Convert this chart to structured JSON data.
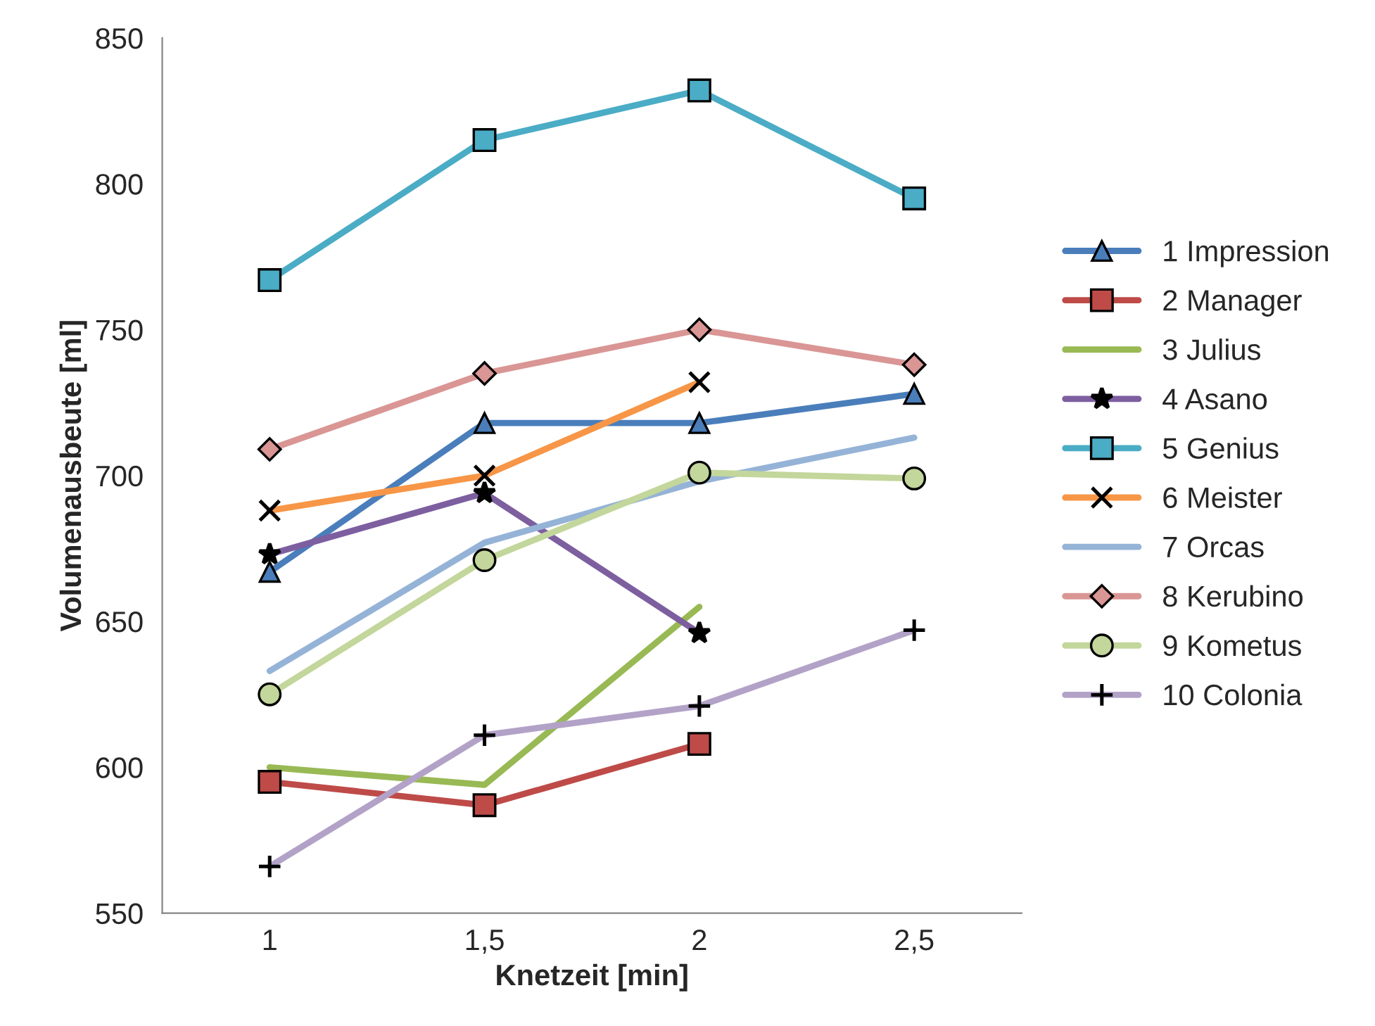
{
  "chart_data": {
    "type": "line",
    "xlabel": "Knetzeit [min]",
    "ylabel": "Volumenausbeute [ml]",
    "categories": [
      "1",
      "1,5",
      "2",
      "2,5"
    ],
    "ylim": [
      550,
      850
    ],
    "yticks": [
      550,
      600,
      650,
      700,
      750,
      800,
      850
    ],
    "grid": false,
    "legend": "right",
    "series": [
      {
        "name": "1 Impression",
        "color": "#4a7ebb",
        "marker": "triangle",
        "values": [
          667,
          718,
          718,
          728
        ]
      },
      {
        "name": "2 Manager",
        "color": "#be4b48",
        "marker": "square",
        "values": [
          595,
          587,
          608,
          null
        ]
      },
      {
        "name": "3 Julius",
        "color": "#98b954",
        "marker": "none",
        "values": [
          600,
          594,
          655,
          null
        ]
      },
      {
        "name": "4 Asano",
        "color": "#7d5fa0",
        "marker": "star",
        "values": [
          673,
          694,
          646,
          null
        ]
      },
      {
        "name": "5 Genius",
        "color": "#4bacc6",
        "marker": "square",
        "values": [
          767,
          815,
          832,
          795
        ]
      },
      {
        "name": "6 Meister",
        "color": "#f79646",
        "marker": "cross",
        "values": [
          688,
          700,
          732,
          null
        ]
      },
      {
        "name": "7 Orcas",
        "color": "#95b3d7",
        "marker": "none",
        "values": [
          633,
          677,
          698,
          713
        ]
      },
      {
        "name": "8 Kerubino",
        "color": "#d99694",
        "marker": "diamond",
        "values": [
          709,
          735,
          750,
          738
        ]
      },
      {
        "name": "9 Kometus",
        "color": "#c3d69b",
        "marker": "circle",
        "values": [
          625,
          671,
          701,
          699
        ]
      },
      {
        "name": "10 Colonia",
        "color": "#b3a2c7",
        "marker": "plus",
        "values": [
          566,
          611,
          621,
          647
        ]
      }
    ]
  }
}
